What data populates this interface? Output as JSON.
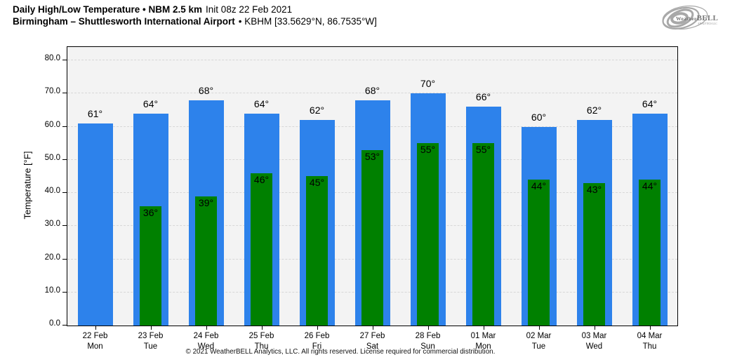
{
  "header": {
    "title_bold": "Daily High/Low Temperature • NBM 2.5 km",
    "title_regular": "Init 08z 22 Feb 2021",
    "subtitle_bold": "Birmingham – Shuttlesworth International Airport",
    "subtitle_regular": "• KBHM [33.5629°N, 86.7535°W]"
  },
  "logo": {
    "brand": "WeatherBELL",
    "sub": "Analytics LLC"
  },
  "footer": {
    "copyright": "© 2021 WeatherBELL Analytics, LLC. All rights reserved. License required for commercial distribution."
  },
  "chart_data": {
    "type": "bar",
    "title": "Daily High/Low Temperature • NBM 2.5 km Init 08z 22 Feb 2021",
    "subtitle": "Birmingham – Shuttlesworth International Airport • KBHM [33.5629°N, 86.7535°W]",
    "xlabel": "",
    "ylabel": "Temperature [°F]",
    "ylim": [
      0,
      80
    ],
    "yticks": [
      0,
      10,
      20,
      30,
      40,
      50,
      60,
      70,
      80
    ],
    "ytick_labels": [
      "0.0",
      "10.0",
      "20.0",
      "30.0",
      "40.0",
      "50.0",
      "60.0",
      "70.0",
      "80.0"
    ],
    "grid": true,
    "legend_position": "none",
    "plot_background": "#f3f3f3",
    "categories": [
      {
        "date": "22 Feb",
        "day": "Mon"
      },
      {
        "date": "23 Feb",
        "day": "Tue"
      },
      {
        "date": "24 Feb",
        "day": "Wed"
      },
      {
        "date": "25 Feb",
        "day": "Thu"
      },
      {
        "date": "26 Feb",
        "day": "Fri"
      },
      {
        "date": "27 Feb",
        "day": "Sat"
      },
      {
        "date": "28 Feb",
        "day": "Sun"
      },
      {
        "date": "01 Mar",
        "day": "Mon"
      },
      {
        "date": "02 Mar",
        "day": "Tue"
      },
      {
        "date": "03 Mar",
        "day": "Wed"
      },
      {
        "date": "04 Mar",
        "day": "Thu"
      }
    ],
    "series": [
      {
        "name": "Daily High",
        "color": "#2d82eb",
        "values": [
          61,
          64,
          68,
          64,
          62,
          68,
          70,
          66,
          60,
          62,
          64
        ],
        "labels": [
          "61°",
          "64°",
          "68°",
          "64°",
          "62°",
          "68°",
          "70°",
          "66°",
          "60°",
          "62°",
          "64°"
        ]
      },
      {
        "name": "Daily Low",
        "color": "#008000",
        "values": [
          null,
          36,
          39,
          46,
          45,
          53,
          55,
          55,
          44,
          43,
          44
        ],
        "labels": [
          null,
          "36°",
          "39°",
          "46°",
          "45°",
          "53°",
          "55°",
          "55°",
          "44°",
          "43°",
          "44°"
        ]
      }
    ]
  }
}
